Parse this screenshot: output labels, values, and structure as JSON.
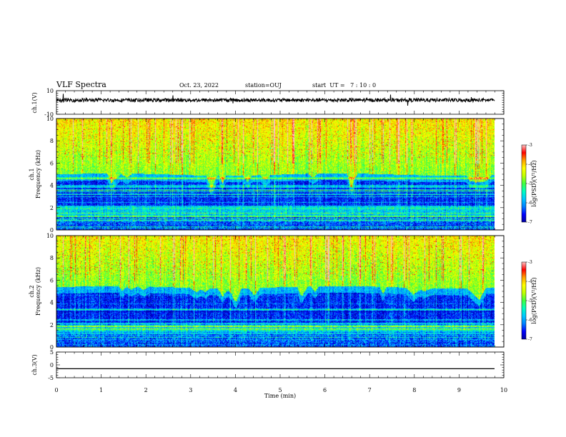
{
  "header": {
    "title": "VLF Spectra",
    "date": "Oct. 23, 2022",
    "station": "station=OUJ",
    "start": "start  UT =   7 : 10 : 0"
  },
  "chart_data": [
    {
      "type": "line",
      "panel": "waveform-ch1",
      "ylabel": "ch.1(V)",
      "ylim": [
        -10,
        10
      ],
      "yticks": [
        "10",
        "-10"
      ],
      "xlim": [
        0,
        10
      ],
      "baseline": 2,
      "noise_amplitude": 3,
      "color": "#000000"
    },
    {
      "type": "heatmap",
      "panel": "spectrogram-ch1",
      "ylabel": "ch.1\nFrequency (kHz)",
      "ylim": [
        0,
        10
      ],
      "yticks": [
        "0",
        "2",
        "4",
        "6",
        "8",
        "10"
      ],
      "xlim": [
        0,
        9.8
      ],
      "colorbar": {
        "label": "log(PSD)(V²/Hz)",
        "range": [
          -7,
          -3
        ],
        "ticks": [
          "-3",
          "-4",
          "-5",
          "-6",
          "-7"
        ]
      }
    },
    {
      "type": "heatmap",
      "panel": "spectrogram-ch2",
      "ylabel": "ch.2\nFrequency (kHz)",
      "ylim": [
        0,
        10
      ],
      "yticks": [
        "0",
        "2",
        "4",
        "6",
        "8",
        "10"
      ],
      "xlim": [
        0,
        9.8
      ],
      "colorbar": {
        "label": "log(PSD)(V²/Hz)",
        "range": [
          -7,
          -3
        ],
        "ticks": [
          "-3",
          "-4",
          "-5",
          "-6",
          "-7"
        ]
      }
    },
    {
      "type": "line",
      "panel": "waveform-ch3",
      "ylabel": "ch.3(V)",
      "ylim": [
        -5,
        5
      ],
      "yticks": [
        "5",
        "0",
        "-5"
      ],
      "xlim": [
        0,
        10
      ],
      "value": -1.5,
      "color": "#000000"
    }
  ],
  "xaxis": {
    "label": "Time (min)",
    "range": [
      0,
      10
    ],
    "ticks": [
      "0",
      "1",
      "2",
      "3",
      "4",
      "5",
      "6",
      "7",
      "8",
      "9",
      "10"
    ]
  },
  "colors": {
    "colormap": [
      "#0000a0",
      "#0000ff",
      "#0080ff",
      "#00c8ff",
      "#00ffc0",
      "#40ff40",
      "#c0ff00",
      "#ffff00",
      "#ffa000",
      "#ff0000",
      "#ffc0c0"
    ]
  }
}
